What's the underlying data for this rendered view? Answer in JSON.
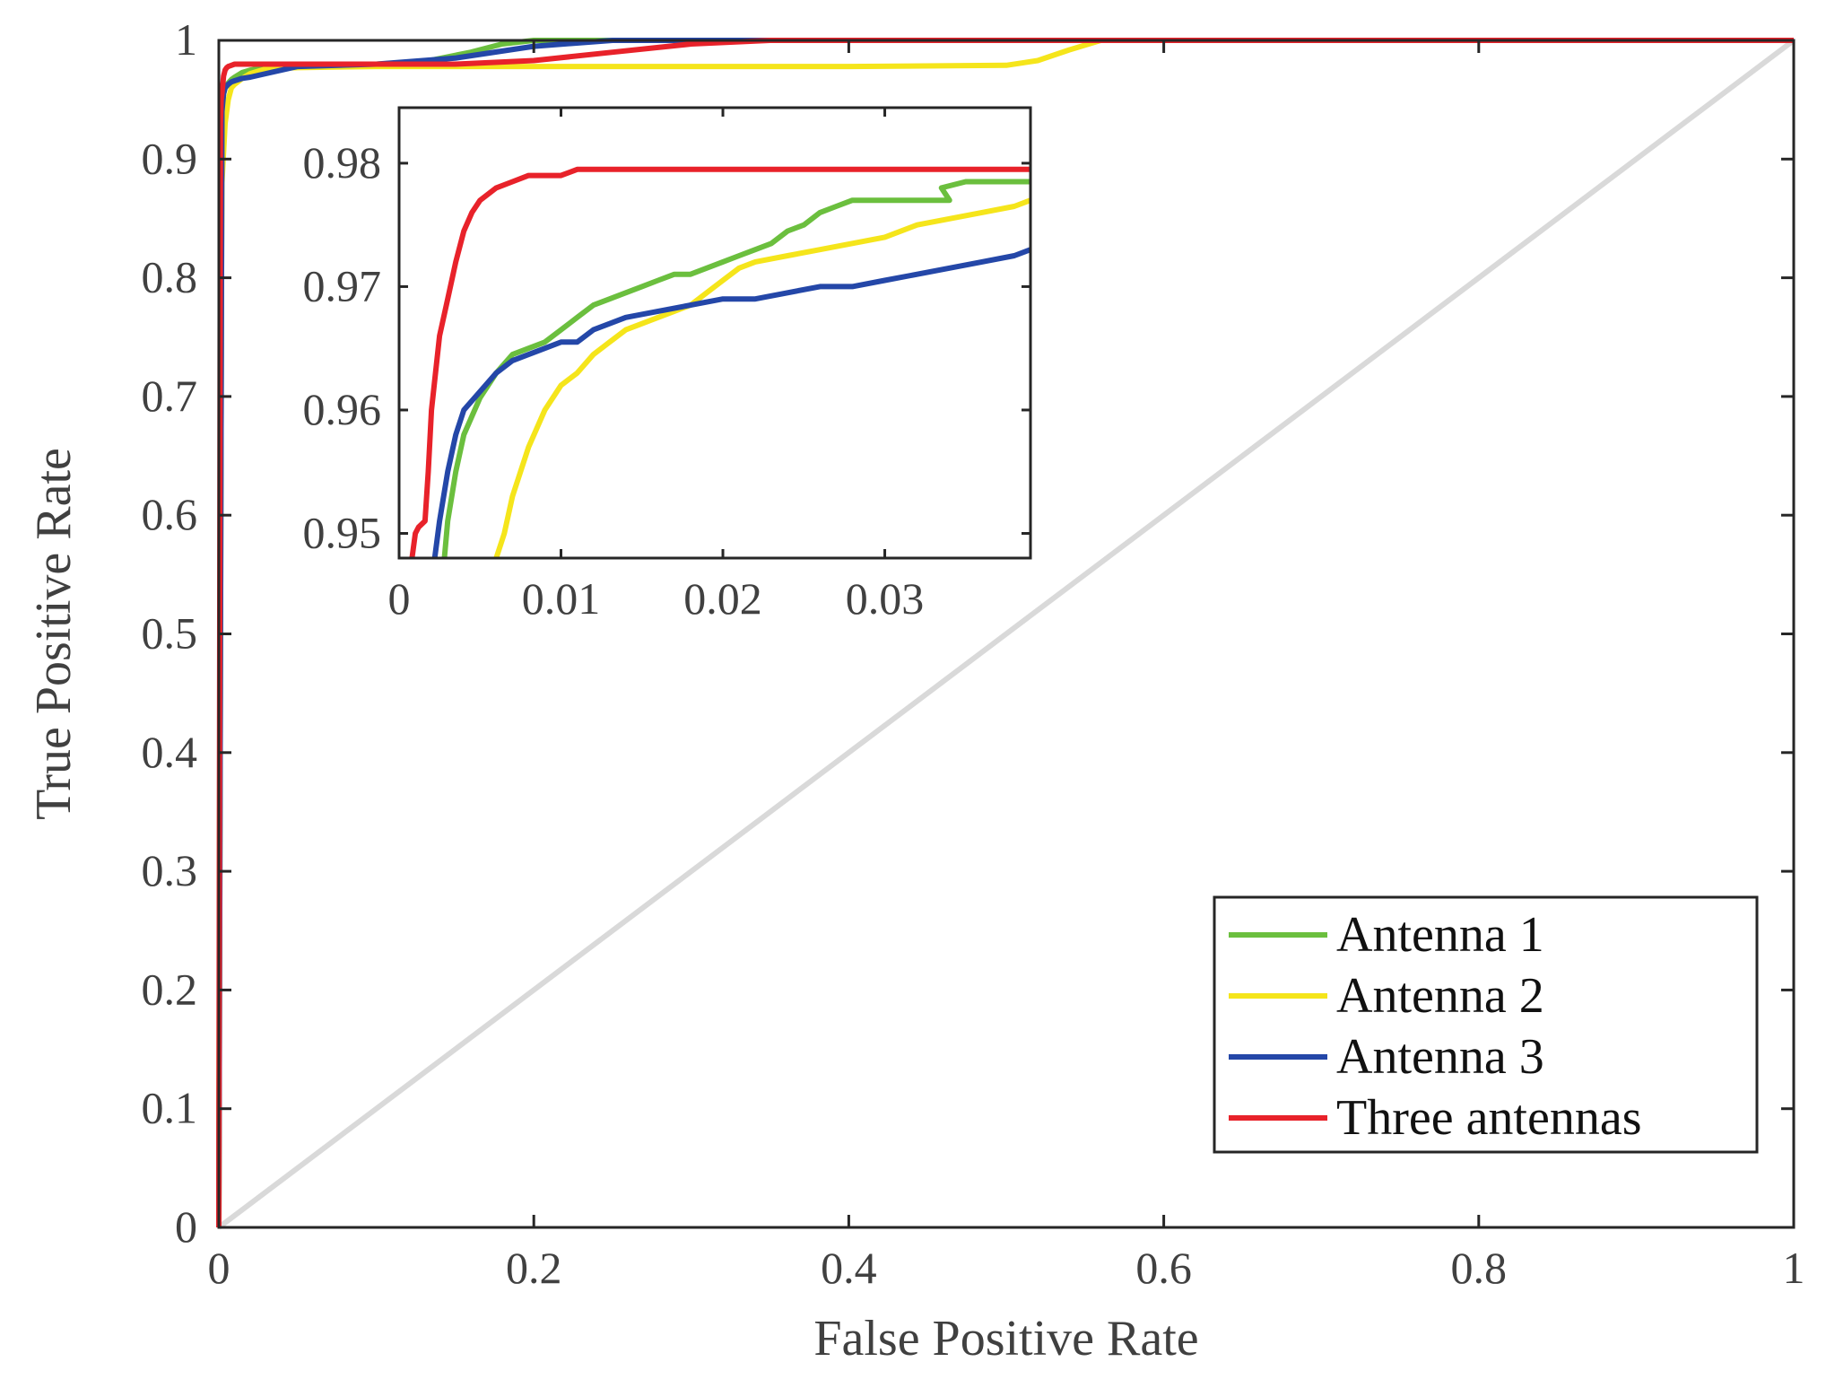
{
  "chart_data": {
    "type": "line",
    "title": "",
    "xlabel": "False Positive Rate",
    "ylabel": "True Positive Rate",
    "xlim": [
      0,
      1
    ],
    "ylim": [
      0,
      1
    ],
    "xticks": [
      "0",
      "0.2",
      "0.4",
      "0.6",
      "0.8",
      "1"
    ],
    "yticks": [
      "0",
      "0.1",
      "0.2",
      "0.3",
      "0.4",
      "0.5",
      "0.6",
      "0.7",
      "0.8",
      "0.9",
      "1"
    ],
    "grid": false,
    "legend_position": "bottom-right",
    "colors": {
      "axis": "#262626",
      "diagonal": "#d9d9d9",
      "legend_border": "#262626"
    },
    "series": [
      {
        "name": "Antenna 1",
        "color": "#6bbf3e",
        "x": [
          0,
          0.002,
          0.003,
          0.004,
          0.006,
          0.008,
          0.01,
          0.015,
          0.02,
          0.03,
          0.05,
          0.1,
          0.13,
          0.16,
          0.18,
          0.2,
          0.22,
          0.25,
          0.3,
          0.4,
          0.6,
          0.8,
          1.0
        ],
        "y": [
          0,
          0.94,
          0.955,
          0.96,
          0.964,
          0.967,
          0.969,
          0.973,
          0.975,
          0.977,
          0.979,
          0.98,
          0.982,
          0.99,
          0.997,
          1.0,
          1.0,
          1.0,
          1.0,
          1.0,
          1.0,
          1.0,
          1.0
        ]
      },
      {
        "name": "Antenna 2",
        "color": "#f5e51b",
        "x": [
          0,
          0.001,
          0.002,
          0.004,
          0.006,
          0.008,
          0.01,
          0.015,
          0.02,
          0.03,
          0.05,
          0.1,
          0.2,
          0.3,
          0.4,
          0.5,
          0.52,
          0.54,
          0.56,
          0.6,
          0.8,
          1.0
        ],
        "y": [
          0,
          0.7,
          0.88,
          0.93,
          0.95,
          0.96,
          0.963,
          0.968,
          0.972,
          0.976,
          0.977,
          0.978,
          0.978,
          0.978,
          0.978,
          0.979,
          0.983,
          0.992,
          1.0,
          1.0,
          1.0,
          1.0
        ]
      },
      {
        "name": "Antenna 3",
        "color": "#2447a8",
        "x": [
          0,
          0.002,
          0.003,
          0.004,
          0.006,
          0.008,
          0.01,
          0.015,
          0.02,
          0.03,
          0.05,
          0.1,
          0.15,
          0.2,
          0.25,
          0.3,
          0.4,
          0.6,
          0.8,
          1.0
        ],
        "y": [
          0,
          0.94,
          0.955,
          0.96,
          0.963,
          0.965,
          0.966,
          0.968,
          0.969,
          0.972,
          0.978,
          0.98,
          0.985,
          0.995,
          1.0,
          1.0,
          1.0,
          1.0,
          1.0,
          1.0
        ]
      },
      {
        "name": "Three antennas",
        "color": "#e8222a",
        "x": [
          0,
          0.001,
          0.0015,
          0.002,
          0.003,
          0.004,
          0.005,
          0.006,
          0.008,
          0.01,
          0.05,
          0.1,
          0.15,
          0.2,
          0.25,
          0.3,
          0.35,
          0.4,
          0.6,
          0.8,
          1.0
        ],
        "y": [
          0,
          0.93,
          0.95,
          0.955,
          0.97,
          0.975,
          0.977,
          0.978,
          0.979,
          0.98,
          0.98,
          0.98,
          0.98,
          0.983,
          0.99,
          0.997,
          1.0,
          1.0,
          1.0,
          1.0,
          1.0
        ]
      }
    ],
    "reference_line": {
      "name": "Chance diagonal",
      "color": "#d9d9d9",
      "x": [
        0,
        1
      ],
      "y": [
        0,
        1
      ]
    },
    "inset": {
      "xlim": [
        0,
        0.039
      ],
      "ylim": [
        0.948,
        0.9845
      ],
      "xticks": [
        "0",
        "0.01",
        "0.02",
        "0.03"
      ],
      "yticks": [
        "0.95",
        "0.96",
        "0.97",
        "0.98"
      ],
      "series": [
        {
          "name": "Antenna 1",
          "color": "#6bbf3e",
          "x": [
            0.0028,
            0.003,
            0.0035,
            0.004,
            0.005,
            0.006,
            0.007,
            0.008,
            0.009,
            0.01,
            0.011,
            0.012,
            0.013,
            0.014,
            0.015,
            0.016,
            0.017,
            0.018,
            0.02,
            0.021,
            0.022,
            0.023,
            0.024,
            0.025,
            0.026,
            0.027,
            0.028,
            0.029,
            0.03,
            0.031,
            0.032,
            0.033,
            0.034,
            0.0335,
            0.035,
            0.037,
            0.039
          ],
          "y": [
            0.948,
            0.951,
            0.955,
            0.958,
            0.961,
            0.963,
            0.9645,
            0.965,
            0.9655,
            0.9665,
            0.9675,
            0.9685,
            0.969,
            0.9695,
            0.97,
            0.9705,
            0.971,
            0.971,
            0.972,
            0.9725,
            0.973,
            0.9735,
            0.9745,
            0.975,
            0.976,
            0.9765,
            0.977,
            0.977,
            0.977,
            0.977,
            0.977,
            0.977,
            0.977,
            0.978,
            0.9785,
            0.9785,
            0.9785
          ]
        },
        {
          "name": "Antenna 2",
          "color": "#f5e51b",
          "x": [
            0.006,
            0.0065,
            0.007,
            0.0075,
            0.008,
            0.009,
            0.01,
            0.011,
            0.012,
            0.013,
            0.014,
            0.015,
            0.016,
            0.017,
            0.018,
            0.019,
            0.02,
            0.021,
            0.022,
            0.024,
            0.026,
            0.028,
            0.03,
            0.032,
            0.034,
            0.036,
            0.038,
            0.039
          ],
          "y": [
            0.948,
            0.95,
            0.953,
            0.955,
            0.957,
            0.96,
            0.962,
            0.963,
            0.9645,
            0.9655,
            0.9665,
            0.967,
            0.9675,
            0.968,
            0.9685,
            0.9695,
            0.9705,
            0.9715,
            0.972,
            0.9725,
            0.973,
            0.9735,
            0.974,
            0.975,
            0.9755,
            0.976,
            0.9765,
            0.977
          ]
        },
        {
          "name": "Antenna 3",
          "color": "#2447a8",
          "x": [
            0.0022,
            0.0025,
            0.003,
            0.0035,
            0.004,
            0.005,
            0.006,
            0.007,
            0.008,
            0.009,
            0.01,
            0.011,
            0.012,
            0.013,
            0.014,
            0.016,
            0.018,
            0.02,
            0.022,
            0.024,
            0.026,
            0.028,
            0.03,
            0.032,
            0.034,
            0.036,
            0.038,
            0.039
          ],
          "y": [
            0.948,
            0.951,
            0.955,
            0.958,
            0.96,
            0.9615,
            0.963,
            0.964,
            0.9645,
            0.965,
            0.9655,
            0.9655,
            0.9665,
            0.967,
            0.9675,
            0.968,
            0.9685,
            0.969,
            0.969,
            0.9695,
            0.97,
            0.97,
            0.9705,
            0.971,
            0.9715,
            0.972,
            0.9725,
            0.973
          ]
        },
        {
          "name": "Three antennas",
          "color": "#e8222a",
          "x": [
            0.0008,
            0.001,
            0.0012,
            0.0016,
            0.0018,
            0.002,
            0.0025,
            0.003,
            0.0035,
            0.004,
            0.0045,
            0.005,
            0.006,
            0.007,
            0.008,
            0.009,
            0.01,
            0.011,
            0.015,
            0.02,
            0.03,
            0.039
          ],
          "y": [
            0.948,
            0.95,
            0.9505,
            0.951,
            0.955,
            0.96,
            0.966,
            0.969,
            0.972,
            0.9745,
            0.976,
            0.977,
            0.978,
            0.9785,
            0.979,
            0.979,
            0.979,
            0.9795,
            0.9795,
            0.9795,
            0.9795,
            0.9795
          ]
        }
      ]
    }
  }
}
